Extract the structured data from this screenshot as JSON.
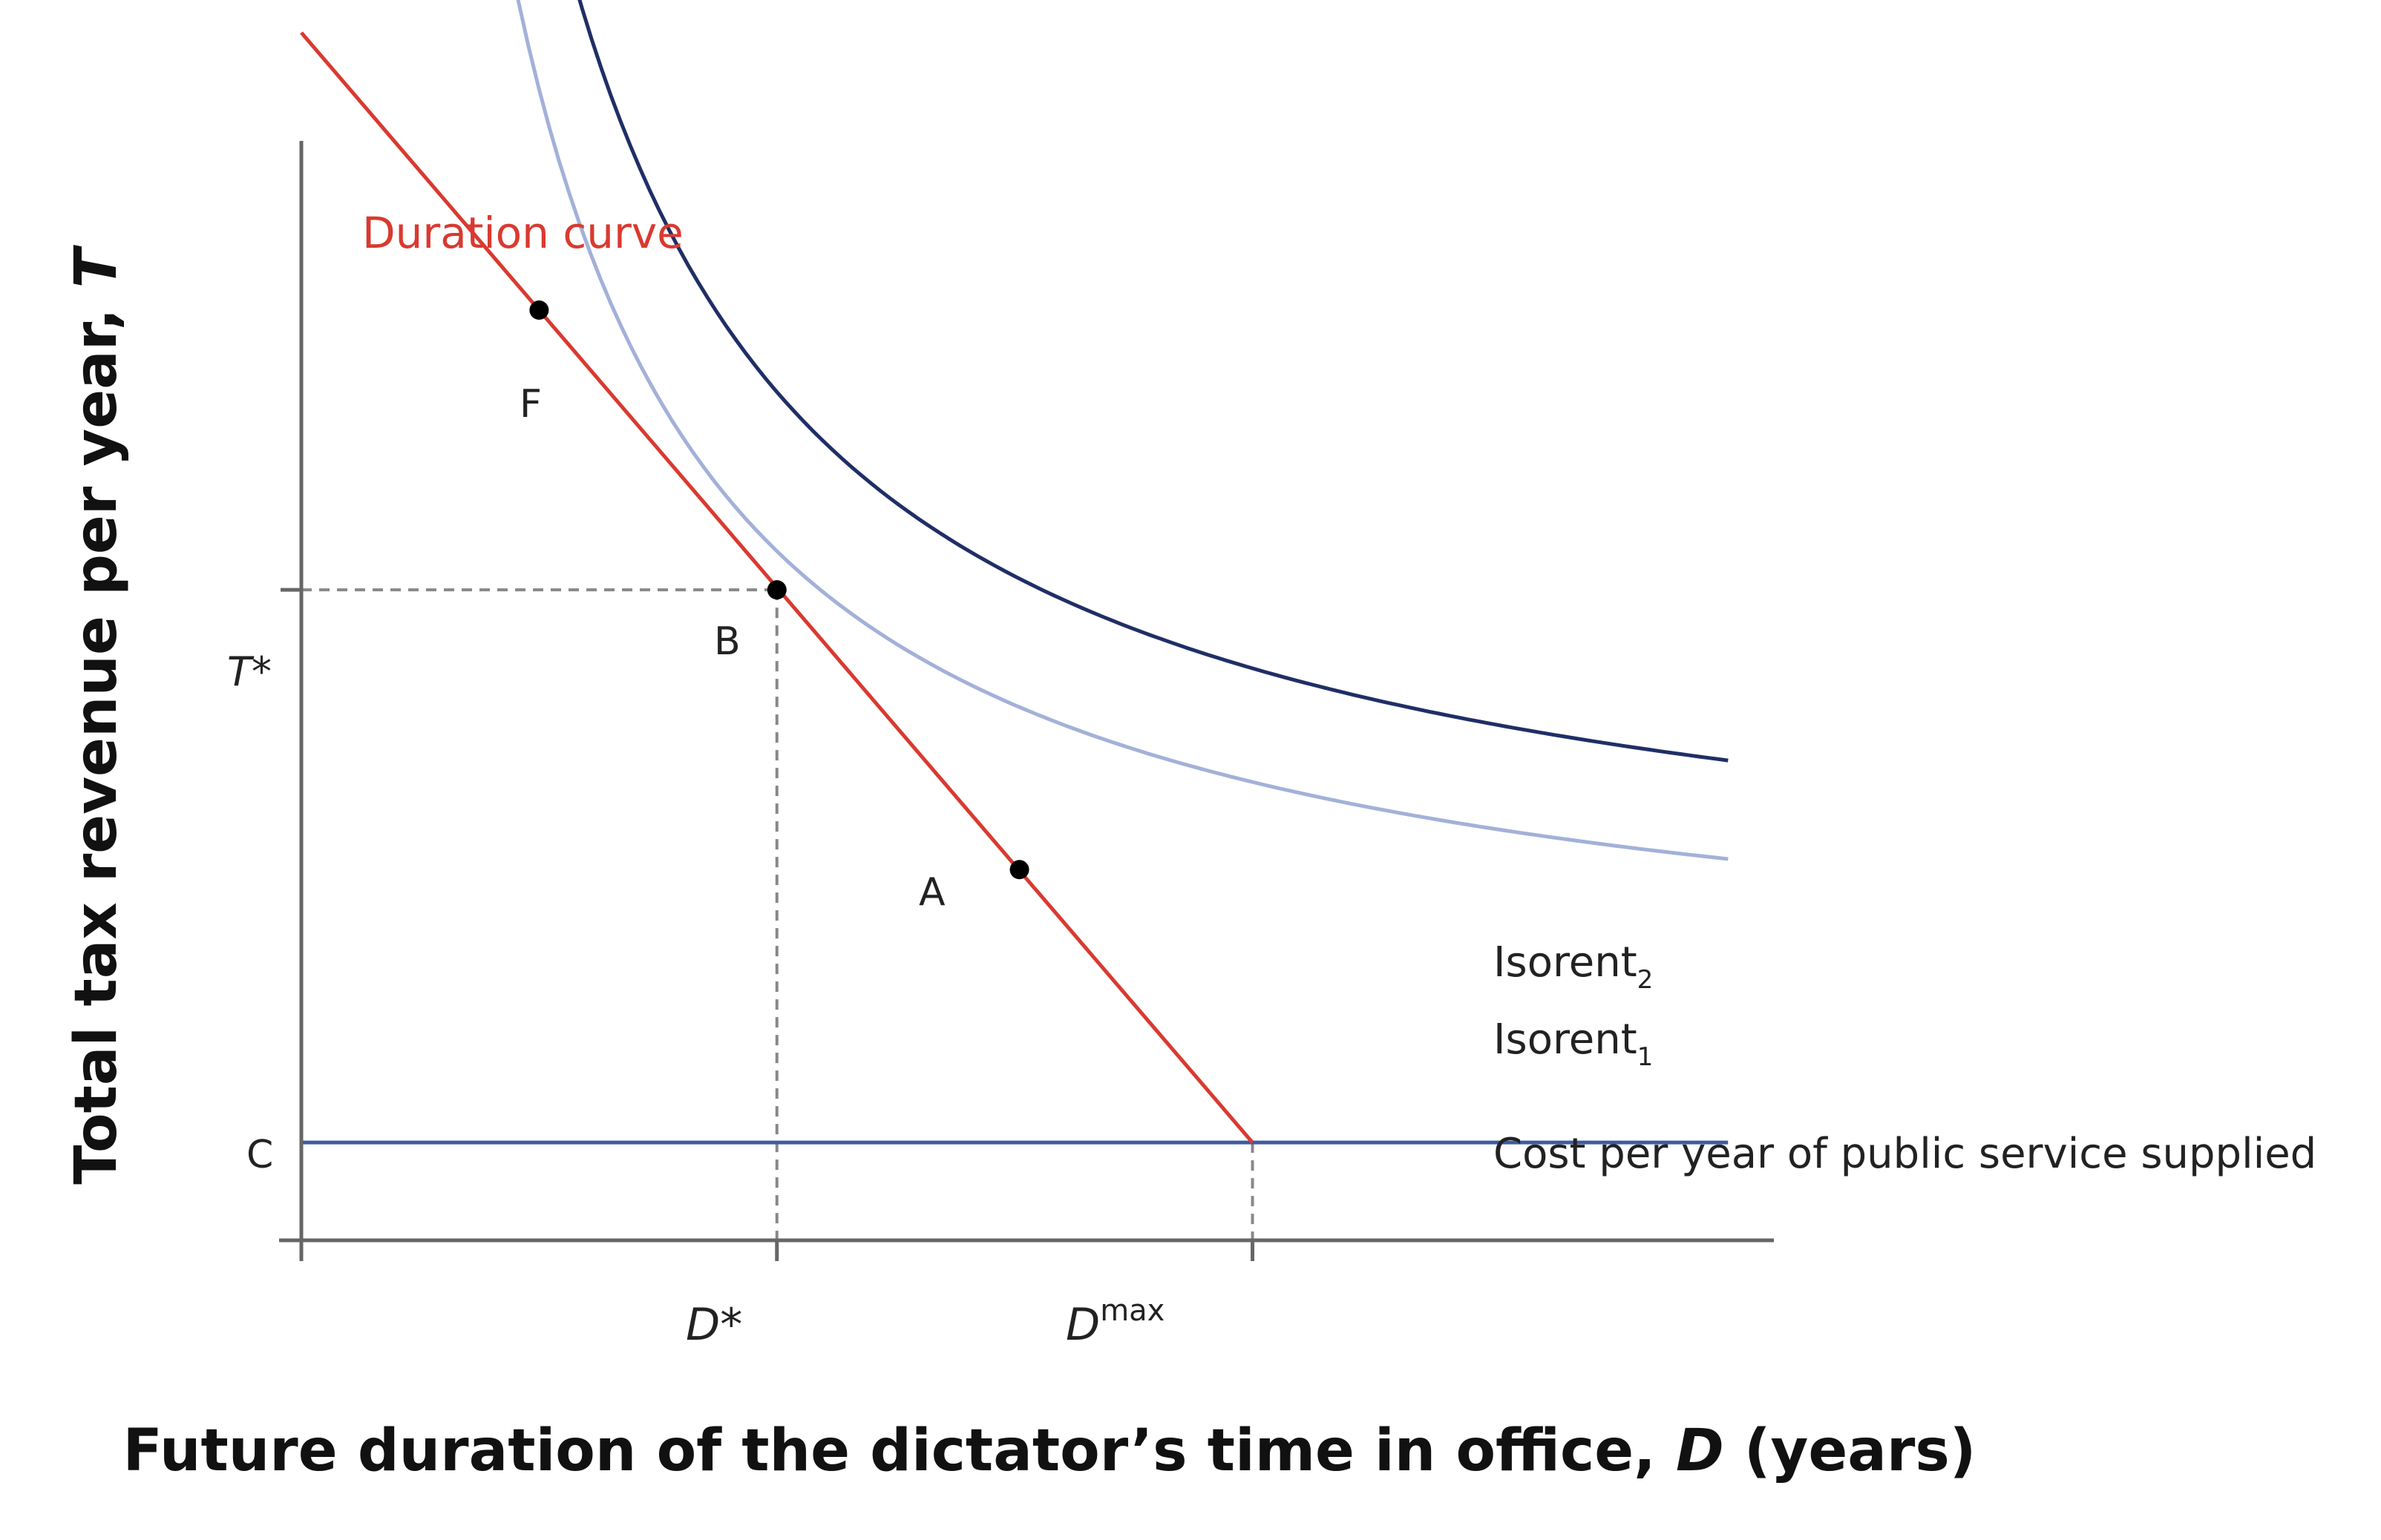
{
  "chart_data": {
    "type": "line",
    "title": "",
    "xlabel": {
      "prefix": "Future duration of the dictator’s time in office, ",
      "var": "D",
      "suffix": " (years)"
    },
    "ylabel": {
      "prefix": "Total tax revenue per year, ",
      "var": "T"
    },
    "xlim": [
      0,
      3.73
    ],
    "ylim": [
      0,
      5.16
    ],
    "grid": false,
    "ticks": {
      "x": [
        {
          "value": 1,
          "base": "D",
          "sup": "*"
        },
        {
          "value": 2,
          "base": "D",
          "sup": "max"
        }
      ],
      "y": [
        {
          "value": 2.86,
          "label": "T*"
        }
      ]
    },
    "series": [
      {
        "name": "Duration curve",
        "kind": "line",
        "color": "#d93a30",
        "x": [
          0,
          2
        ],
        "y": [
          5.31,
          0.43
        ]
      },
      {
        "name": "Isorent",
        "sub": "1",
        "kind": "curve",
        "color": "#a3b1d9",
        "k": 2.03,
        "y0": 1.0,
        "x": [
          0.39,
          3.0
        ]
      },
      {
        "name": "Isorent",
        "sub": "2",
        "kind": "curve",
        "color": "#1f2f66",
        "k": 2.43,
        "y0": 1.3,
        "x": [
          0.57,
          3.0
        ]
      },
      {
        "name": "Cost per year of public service supplied",
        "kind": "hline",
        "color": "#3f5aa0",
        "y": 0.43,
        "x": [
          0,
          3.0
        ]
      }
    ],
    "points": [
      {
        "label": "F",
        "x": 0.5,
        "y": 4.09
      },
      {
        "label": "B",
        "x": 1.0,
        "y": 2.86
      },
      {
        "label": "A",
        "x": 1.51,
        "y": 1.63
      }
    ],
    "annotations": [
      {
        "label": "C",
        "y": 0.43
      }
    ]
  }
}
